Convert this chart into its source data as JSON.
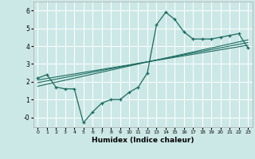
{
  "title": "",
  "xlabel": "Humidex (Indice chaleur)",
  "ylabel": "",
  "background_color": "#cce8e6",
  "grid_color": "#ffffff",
  "line_color": "#1a6b5e",
  "xlim": [
    -0.5,
    23.5
  ],
  "ylim": [
    -0.55,
    6.5
  ],
  "yticks": [
    0,
    1,
    2,
    3,
    4,
    5,
    6
  ],
  "ytick_labels": [
    "-0",
    "1",
    "2",
    "3",
    "4",
    "5",
    "6"
  ],
  "xticks": [
    0,
    1,
    2,
    3,
    4,
    5,
    6,
    7,
    8,
    9,
    10,
    11,
    12,
    13,
    14,
    15,
    16,
    17,
    18,
    19,
    20,
    21,
    22,
    23
  ],
  "series1_x": [
    0,
    1,
    2,
    3,
    4,
    5,
    6,
    7,
    8,
    9,
    10,
    11,
    12,
    13,
    14,
    15,
    16,
    17,
    18,
    19,
    20,
    21,
    22,
    23
  ],
  "series1_y": [
    2.2,
    2.4,
    1.7,
    1.6,
    1.6,
    -0.3,
    0.3,
    0.8,
    1.0,
    1.0,
    1.4,
    1.7,
    2.5,
    5.2,
    5.9,
    5.5,
    4.8,
    4.4,
    4.4,
    4.4,
    4.5,
    4.6,
    4.7,
    3.9
  ],
  "series2_x": [
    0,
    23
  ],
  "series2_y": [
    2.1,
    4.05
  ],
  "series3_x": [
    0,
    23
  ],
  "series3_y": [
    1.95,
    4.2
  ],
  "series4_x": [
    0,
    23
  ],
  "series4_y": [
    1.75,
    4.35
  ]
}
